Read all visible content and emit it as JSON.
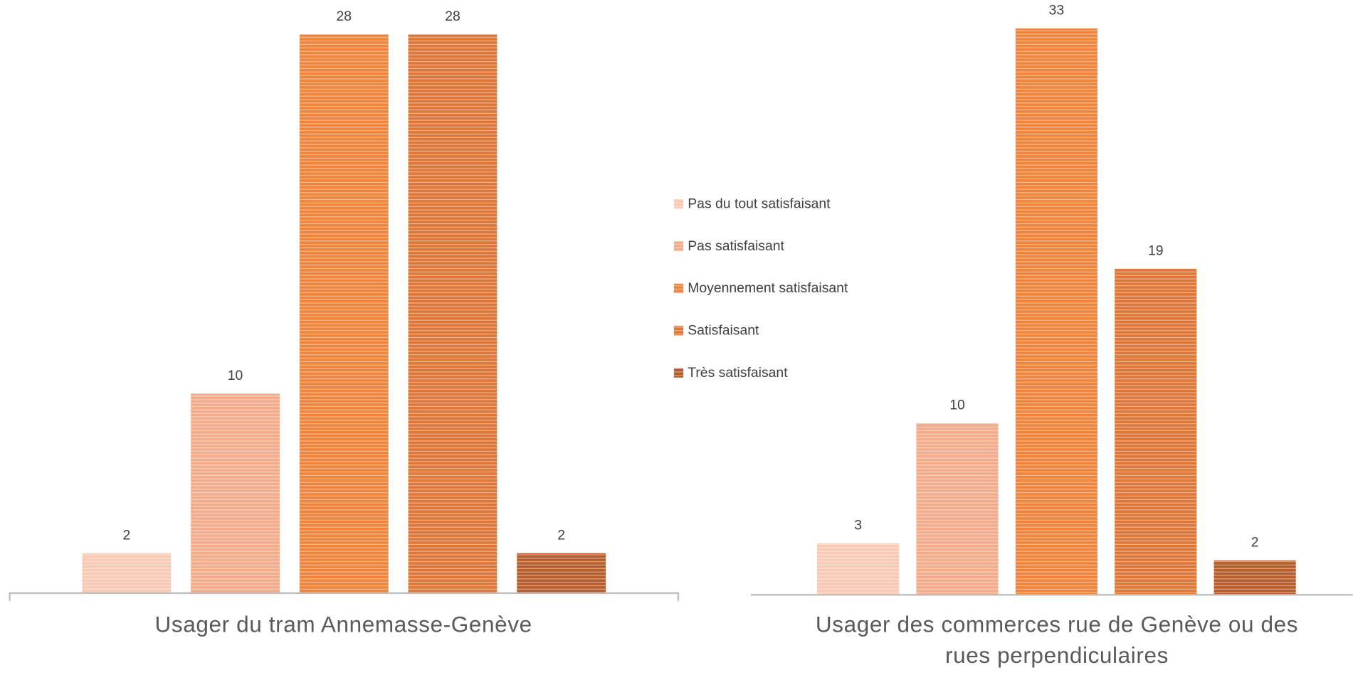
{
  "chart_data": [
    {
      "type": "bar",
      "categories": [
        "Usager du tram Annemasse-Genève"
      ],
      "series": [
        {
          "name": "Pas du tout satisfaisant",
          "color": "#f8c9b3",
          "values": [
            2
          ]
        },
        {
          "name": "Pas satisfaisant",
          "color": "#f3ab8a",
          "values": [
            10
          ]
        },
        {
          "name": "Moyennement satisfaisant",
          "color": "#f0843a",
          "values": [
            28
          ]
        },
        {
          "name": "Satisfaisant",
          "color": "#de7638",
          "values": [
            28
          ]
        },
        {
          "name": "Très satisfaisant",
          "color": "#b65d2b",
          "values": [
            2
          ]
        }
      ]
    },
    {
      "type": "bar",
      "categories": [
        "Usager des commerces rue de Genève ou des rues perpendiculaires"
      ],
      "series": [
        {
          "name": "Pas du tout satisfaisant",
          "color": "#f8c9b3",
          "values": [
            3
          ]
        },
        {
          "name": "Pas satisfaisant",
          "color": "#f3ab8a",
          "values": [
            10
          ]
        },
        {
          "name": "Moyennement satisfaisant",
          "color": "#f0843a",
          "values": [
            33
          ]
        },
        {
          "name": "Satisfaisant",
          "color": "#de7638",
          "values": [
            19
          ]
        },
        {
          "name": "Très satisfaisant",
          "color": "#b65d2b",
          "values": [
            2
          ]
        }
      ]
    }
  ]
}
